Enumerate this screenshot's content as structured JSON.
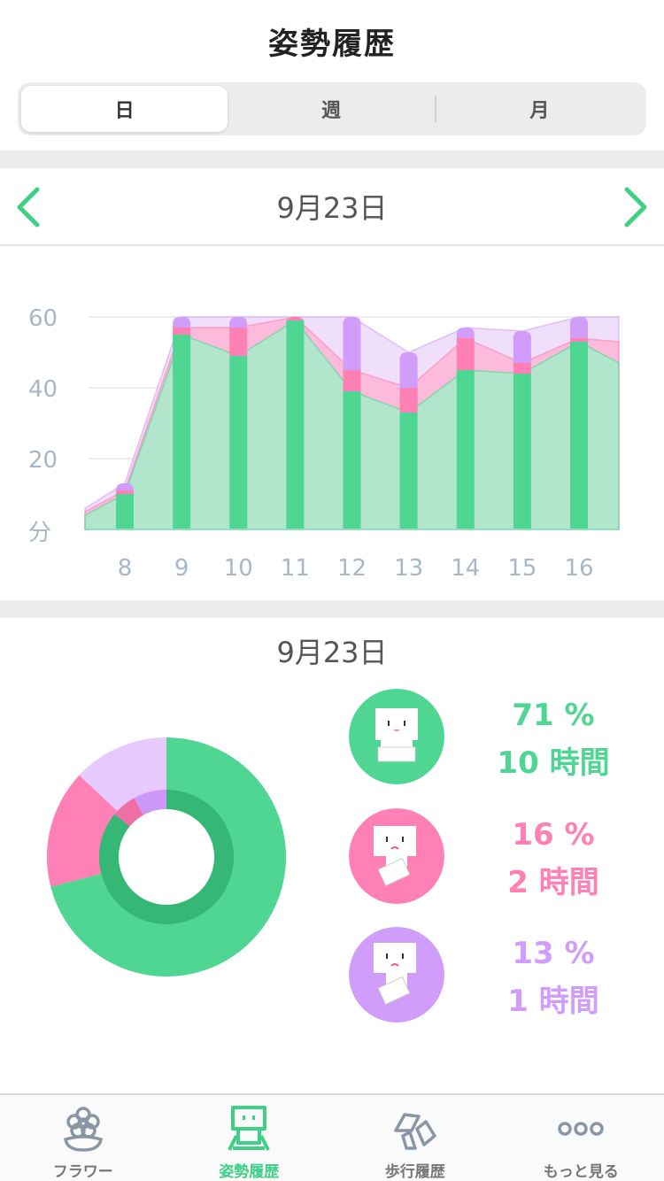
{
  "header": {
    "title": "姿勢履歴"
  },
  "segment": {
    "tabs": [
      {
        "label": "日",
        "active": true
      },
      {
        "label": "週",
        "active": false
      },
      {
        "label": "月",
        "active": false
      }
    ]
  },
  "date_nav": {
    "date": "9月23日"
  },
  "colors": {
    "good": "#4fd693",
    "warn": "#fe80b4",
    "bad": "#d09dfb",
    "good_fill": "#a8ebcb",
    "warn_fill": "#fdb7d6",
    "bad_fill": "#eddcfa",
    "accent": "#3fcf86"
  },
  "chart_data": {
    "type": "bar",
    "categories": [
      "8",
      "9",
      "10",
      "11",
      "12",
      "13",
      "14",
      "15",
      "16"
    ],
    "ylabel": "分",
    "yticks": [
      "60",
      "40",
      "20"
    ],
    "ylim": [
      0,
      60
    ],
    "series": [
      {
        "values": [
          10,
          55,
          49,
          59,
          39,
          33,
          45,
          44,
          53
        ]
      },
      {
        "values": [
          1,
          2,
          8,
          1,
          6,
          7,
          9,
          3,
          1
        ]
      },
      {
        "values": [
          2,
          3,
          3,
          0,
          15,
          10,
          3,
          9,
          6
        ]
      }
    ],
    "area_series": [
      {
        "x": [
          7.3,
          8,
          9,
          10,
          11,
          12,
          13,
          14,
          15,
          16,
          16.7
        ],
        "values": [
          4,
          10,
          55,
          49,
          59,
          39,
          33,
          45,
          44,
          53,
          47
        ]
      },
      {
        "x": [
          7.3,
          8,
          9,
          10,
          11,
          12,
          13,
          14,
          15,
          16,
          16.7
        ],
        "values": [
          5,
          11,
          57,
          57,
          60,
          45,
          40,
          54,
          47,
          54,
          53
        ]
      },
      {
        "x": [
          7.3,
          8,
          9,
          10,
          11,
          12,
          13,
          14,
          15,
          16,
          16.7
        ],
        "values": [
          6,
          13,
          60,
          60,
          60,
          60,
          50,
          57,
          56,
          60,
          60
        ]
      }
    ]
  },
  "summary": {
    "date": "9月23日",
    "pie": [
      {
        "value": 71,
        "color": "#4fd693"
      },
      {
        "value": 16,
        "color": "#fe80b4"
      },
      {
        "value": 13,
        "color": "#e6caff"
      }
    ],
    "inner_pie": [
      {
        "value": 86,
        "color": "#35b775"
      },
      {
        "value": 6,
        "color": "#ee6ea6"
      },
      {
        "value": 8,
        "color": "#cd98f7"
      }
    ],
    "stats": [
      {
        "percent": "71 %",
        "time": "10 時間",
        "color": "#4fd693",
        "icon": "good-posture-icon"
      },
      {
        "percent": "16 %",
        "time": "2 時間",
        "color": "#fe80b4",
        "icon": "slouch-posture-icon"
      },
      {
        "percent": "13 %",
        "time": "1 時間",
        "color": "#d09dfb",
        "icon": "bad-posture-icon"
      }
    ]
  },
  "tabbar": {
    "items": [
      {
        "label": "フラワー",
        "icon": "flower-icon"
      },
      {
        "label": "姿勢履歴",
        "icon": "posture-icon",
        "active": true
      },
      {
        "label": "歩行履歴",
        "icon": "walking-icon"
      },
      {
        "label": "もっと見る",
        "icon": "more-icon"
      }
    ]
  }
}
